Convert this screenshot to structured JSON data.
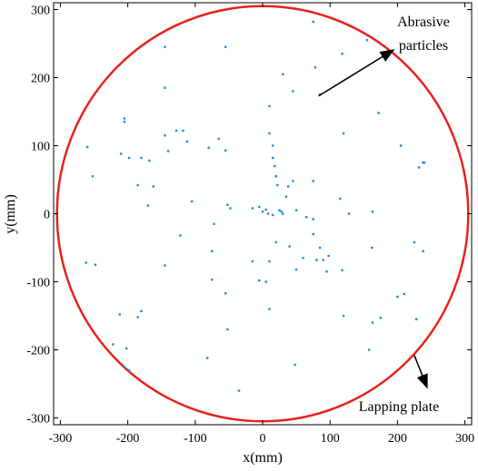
{
  "chart_data": {
    "type": "scatter",
    "title": "",
    "xlabel": "x(mm)",
    "ylabel": "y(mm)",
    "xlim": [
      -310,
      310
    ],
    "ylim": [
      -310,
      310
    ],
    "xticks": [
      -300,
      -200,
      -100,
      0,
      100,
      200,
      300
    ],
    "yticks": [
      -300,
      -200,
      -100,
      0,
      100,
      200,
      300
    ],
    "grid": false,
    "colors": {
      "points": "#1f8ad6",
      "circle": "#e8221b",
      "axes": "#000000"
    },
    "circle": {
      "center": [
        0,
        0
      ],
      "radius": 305
    },
    "series": [
      {
        "points": [
          [
            -260,
            98
          ],
          [
            -252,
            55
          ],
          [
            -262,
            -72
          ],
          [
            -248,
            -75
          ],
          [
            -205,
            140
          ],
          [
            -205,
            135
          ],
          [
            -210,
            88
          ],
          [
            -198,
            82
          ],
          [
            -180,
            82
          ],
          [
            -168,
            78
          ],
          [
            -185,
            42
          ],
          [
            -162,
            40
          ],
          [
            -170,
            12
          ],
          [
            -145,
            245
          ],
          [
            -145,
            185
          ],
          [
            -145,
            115
          ],
          [
            -140,
            92
          ],
          [
            -128,
            122
          ],
          [
            -118,
            122
          ],
          [
            -112,
            106
          ],
          [
            -105,
            18
          ],
          [
            -122,
            -32
          ],
          [
            -145,
            -76
          ],
          [
            -212,
            -148
          ],
          [
            -185,
            -152
          ],
          [
            -180,
            -143
          ],
          [
            -222,
            -192
          ],
          [
            -202,
            -198
          ],
          [
            -205,
            -225
          ],
          [
            -198,
            -230
          ],
          [
            -80,
            97
          ],
          [
            -65,
            110
          ],
          [
            -55,
            93
          ],
          [
            -55,
            245
          ],
          [
            -52,
            13
          ],
          [
            -48,
            8
          ],
          [
            -72,
            -15
          ],
          [
            -75,
            -55
          ],
          [
            -75,
            -97
          ],
          [
            -55,
            -117
          ],
          [
            -52,
            -170
          ],
          [
            -82,
            -212
          ],
          [
            -35,
            -260
          ],
          [
            -15,
            8
          ],
          [
            -5,
            10
          ],
          [
            0,
            3
          ],
          [
            5,
            6
          ],
          [
            8,
            0
          ],
          [
            10,
            158
          ],
          [
            10,
            118
          ],
          [
            15,
            100
          ],
          [
            15,
            82
          ],
          [
            18,
            70
          ],
          [
            20,
            55
          ],
          [
            22,
            42
          ],
          [
            25,
            5
          ],
          [
            28,
            3
          ],
          [
            30,
            0
          ],
          [
            35,
            25
          ],
          [
            38,
            40
          ],
          [
            45,
            48
          ],
          [
            15,
            -2
          ],
          [
            10,
            -70
          ],
          [
            5,
            -100
          ],
          [
            10,
            -140
          ],
          [
            -15,
            -70
          ],
          [
            -5,
            -98
          ],
          [
            30,
            205
          ],
          [
            45,
            180
          ],
          [
            75,
            282
          ],
          [
            78,
            215
          ],
          [
            85,
            175
          ],
          [
            75,
            48
          ],
          [
            50,
            5
          ],
          [
            65,
            -5
          ],
          [
            75,
            -8
          ],
          [
            20,
            -42
          ],
          [
            40,
            -48
          ],
          [
            60,
            -65
          ],
          [
            75,
            -30
          ],
          [
            85,
            -50
          ],
          [
            90,
            -68
          ],
          [
            98,
            -62
          ],
          [
            50,
            -82
          ],
          [
            80,
            -68
          ],
          [
            95,
            -85
          ],
          [
            118,
            -83
          ],
          [
            48,
            -222
          ],
          [
            118,
            235
          ],
          [
            120,
            118
          ],
          [
            115,
            22
          ],
          [
            128,
            0
          ],
          [
            155,
            255
          ],
          [
            172,
            148
          ],
          [
            163,
            3
          ],
          [
            162,
            -50
          ],
          [
            120,
            -150
          ],
          [
            158,
            -200
          ],
          [
            163,
            -160
          ],
          [
            175,
            -153
          ],
          [
            200,
            -122
          ],
          [
            210,
            -118
          ],
          [
            228,
            -155
          ],
          [
            205,
            100
          ],
          [
            225,
            -42
          ],
          [
            232,
            68
          ],
          [
            238,
            75
          ],
          [
            240,
            75
          ],
          [
            238,
            -55
          ]
        ]
      }
    ],
    "annotations": [
      {
        "text": "Abrasive particles",
        "lines": [
          "Abrasive",
          "particles"
        ],
        "points_to": [
          83,
          173
        ]
      },
      {
        "text": "Lapping plate",
        "points_to": [
          225,
          -208
        ]
      }
    ]
  }
}
